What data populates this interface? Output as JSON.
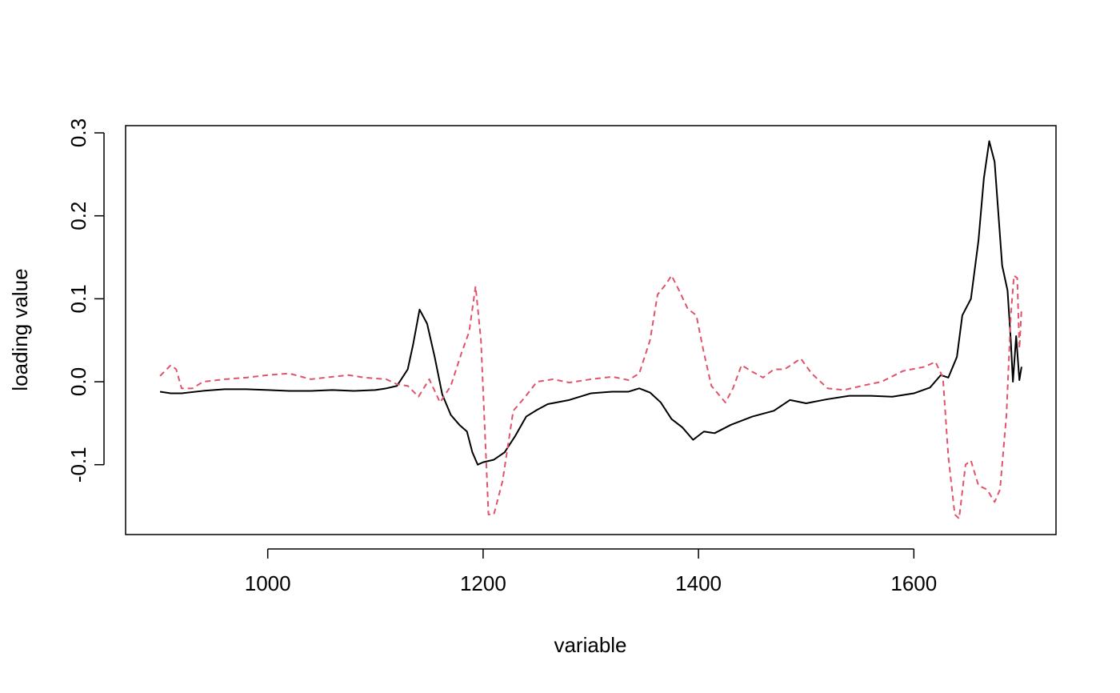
{
  "chart_data": {
    "type": "line",
    "x_label": "variable",
    "y_label": "loading value",
    "xlim": [
      868,
      1732
    ],
    "ylim": [
      -0.1842,
      0.3087
    ],
    "xticks": [
      1000,
      1200,
      1400,
      1600
    ],
    "yticks": [
      -0.1,
      {
        "value": 0,
        "label": "0.0"
      },
      0.1,
      0.2,
      0.3
    ],
    "series": [
      {
        "color": "#000000",
        "dash": false,
        "x": [
          900,
          910,
          920,
          940,
          960,
          980,
          1000,
          1020,
          1040,
          1060,
          1080,
          1100,
          1110,
          1120,
          1130,
          1135,
          1141,
          1148,
          1155,
          1162,
          1170,
          1178,
          1185,
          1190,
          1195,
          1200,
          1210,
          1220,
          1230,
          1240,
          1250,
          1260,
          1280,
          1300,
          1320,
          1335,
          1345,
          1355,
          1365,
          1375,
          1385,
          1395,
          1405,
          1415,
          1430,
          1450,
          1470,
          1485,
          1500,
          1520,
          1540,
          1560,
          1580,
          1600,
          1615,
          1625,
          1632,
          1640,
          1645,
          1653,
          1660,
          1665,
          1670,
          1675,
          1682,
          1687,
          1690,
          1692,
          1695,
          1698,
          1700
        ],
        "values": [
          -0.012,
          -0.014,
          -0.014,
          -0.011,
          -0.009,
          -0.009,
          -0.01,
          -0.011,
          -0.011,
          -0.01,
          -0.011,
          -0.01,
          -0.008,
          -0.005,
          0.015,
          0.045,
          0.087,
          0.07,
          0.03,
          -0.015,
          -0.04,
          -0.052,
          -0.06,
          -0.085,
          -0.1,
          -0.097,
          -0.094,
          -0.085,
          -0.065,
          -0.042,
          -0.034,
          -0.027,
          -0.022,
          -0.014,
          -0.012,
          -0.012,
          -0.008,
          -0.013,
          -0.025,
          -0.045,
          -0.055,
          -0.07,
          -0.06,
          -0.062,
          -0.052,
          -0.042,
          -0.035,
          -0.022,
          -0.026,
          -0.021,
          -0.017,
          -0.017,
          -0.018,
          -0.014,
          -0.007,
          0.008,
          0.005,
          0.03,
          0.08,
          0.1,
          0.17,
          0.245,
          0.29,
          0.265,
          0.14,
          0.11,
          0.05,
          0.0,
          0.055,
          0.002,
          0.018
        ]
      },
      {
        "color": "#DF536B",
        "dash": true,
        "x": [
          900,
          910,
          915,
          920,
          930,
          940,
          960,
          980,
          1000,
          1020,
          1040,
          1060,
          1075,
          1090,
          1110,
          1120,
          1130,
          1140,
          1150,
          1160,
          1170,
          1180,
          1187,
          1193,
          1198,
          1205,
          1210,
          1218,
          1228,
          1238,
          1250,
          1265,
          1280,
          1300,
          1320,
          1335,
          1345,
          1355,
          1362,
          1370,
          1375,
          1382,
          1390,
          1398,
          1405,
          1412,
          1425,
          1432,
          1440,
          1450,
          1460,
          1470,
          1480,
          1495,
          1505,
          1520,
          1535,
          1555,
          1570,
          1590,
          1610,
          1620,
          1627,
          1632,
          1638,
          1642,
          1648,
          1653,
          1660,
          1668,
          1675,
          1680,
          1686,
          1690,
          1693,
          1696,
          1698,
          1700
        ],
        "values": [
          0.007,
          0.02,
          0.015,
          -0.008,
          -0.008,
          0.0,
          0.003,
          0.005,
          0.008,
          0.01,
          0.003,
          0.006,
          0.008,
          0.005,
          0.003,
          -0.003,
          -0.005,
          -0.018,
          0.003,
          -0.025,
          -0.005,
          0.035,
          0.06,
          0.115,
          0.05,
          -0.16,
          -0.16,
          -0.12,
          -0.035,
          -0.02,
          0.0,
          0.003,
          -0.001,
          0.003,
          0.006,
          0.002,
          0.01,
          0.05,
          0.105,
          0.118,
          0.128,
          0.11,
          0.088,
          0.08,
          0.035,
          -0.005,
          -0.025,
          -0.008,
          0.02,
          0.012,
          0.005,
          0.015,
          0.015,
          0.028,
          0.01,
          -0.008,
          -0.01,
          -0.004,
          0.0,
          0.013,
          0.018,
          0.024,
          0.005,
          -0.09,
          -0.16,
          -0.165,
          -0.1,
          -0.095,
          -0.125,
          -0.13,
          -0.145,
          -0.13,
          -0.04,
          0.08,
          0.128,
          0.125,
          0.04,
          0.088
        ]
      }
    ]
  }
}
